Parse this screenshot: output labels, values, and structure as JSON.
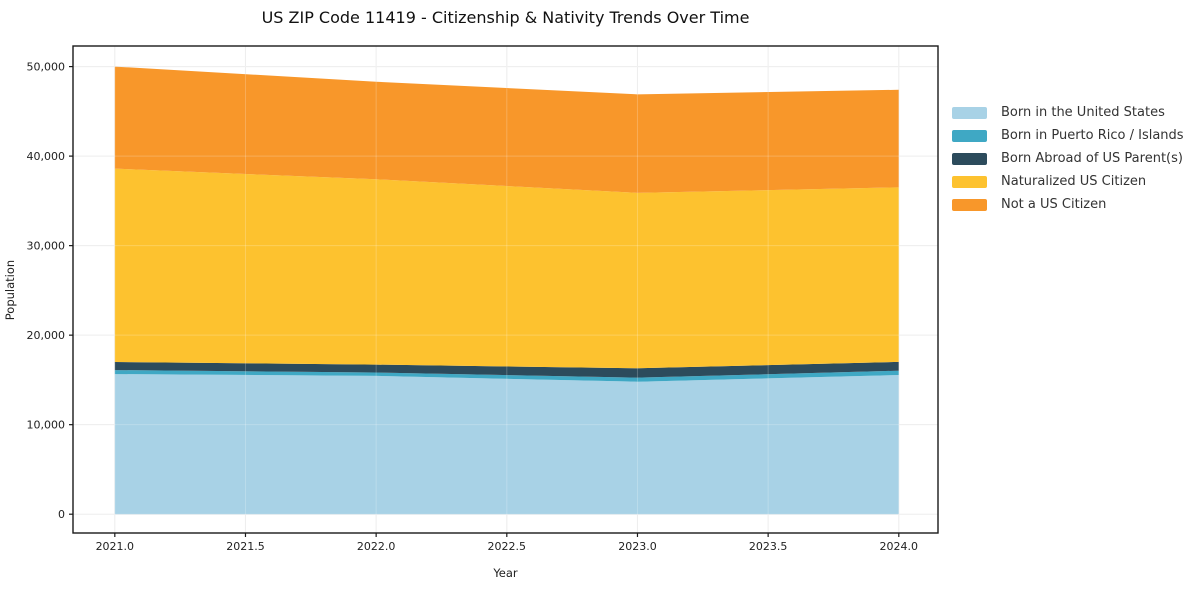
{
  "title": "US ZIP Code 11419 - Citizenship & Nativity Trends Over Time",
  "chart_data": {
    "type": "area",
    "stacked": true,
    "title": "US ZIP Code 11419 - Citizenship & Nativity Trends Over Time",
    "xlabel": "Year",
    "ylabel": "Population",
    "x": [
      2021,
      2022,
      2023,
      2024
    ],
    "series": [
      {
        "name": "Born in the United States",
        "color": "#a8d2e6",
        "values": [
          15650,
          15450,
          14800,
          15550
        ]
      },
      {
        "name": "Born in Puerto Rico / Islands",
        "color": "#3fa8c4",
        "values": [
          450,
          380,
          450,
          480
        ]
      },
      {
        "name": "Born Abroad of US Parent(s)",
        "color": "#2c4b5c",
        "values": [
          900,
          880,
          1050,
          980
        ]
      },
      {
        "name": "Naturalized US Citizen",
        "color": "#fdc22f",
        "values": [
          21600,
          20700,
          19600,
          19500
        ]
      },
      {
        "name": "Not a US Citizen",
        "color": "#f8972a",
        "values": [
          11400,
          10900,
          11000,
          10900
        ]
      }
    ],
    "stack_totals": [
      50000,
      48310,
      46900,
      47410
    ],
    "xlim": [
      2020.84,
      2024.15
    ],
    "ylim": [
      -2100,
      52300
    ],
    "xticks": {
      "values": [
        2021.0,
        2021.5,
        2022.0,
        2022.5,
        2023.0,
        2023.5,
        2024.0
      ],
      "labels": [
        "2021.0",
        "2021.5",
        "2022.0",
        "2022.5",
        "2023.0",
        "2023.5",
        "2024.0"
      ]
    },
    "yticks": {
      "values": [
        0,
        10000,
        20000,
        30000,
        40000,
        50000
      ],
      "labels": [
        "0",
        "10,000",
        "20,000",
        "30,000",
        "40,000",
        "50,000"
      ]
    },
    "grid": true,
    "legend_position": "right-outside"
  },
  "colors": {
    "grid_under": "#e9e9e9",
    "grid_over": "rgba(255,255,255,0.22)",
    "spine": "#1a1a1a",
    "tick_label": "#222222"
  }
}
